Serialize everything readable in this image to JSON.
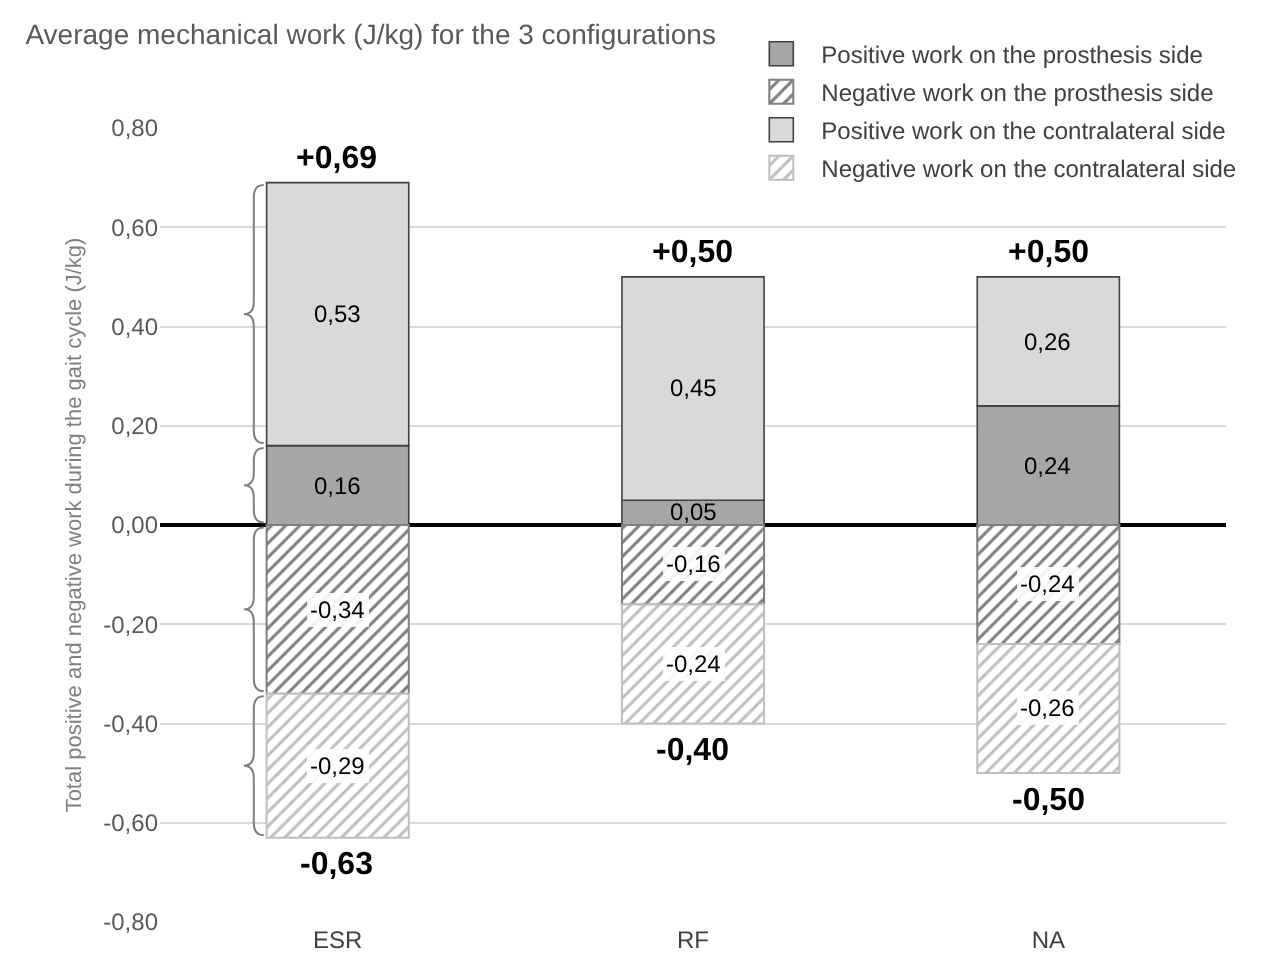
{
  "chart_data": {
    "type": "bar",
    "title": "Average mechanical work (J/kg) for the 3 configurations",
    "ylabel": "Total positive and negative work during the gait cycle (J/kg)",
    "categories": [
      "ESR",
      "RF",
      "NA"
    ],
    "stacked": true,
    "series": [
      {
        "name": "Positive work on the prosthesis side",
        "color": "#a6a6a6",
        "values": [
          0.16,
          0.05,
          0.24
        ],
        "value_labels": [
          "0,16",
          "0,05",
          "0,24"
        ]
      },
      {
        "name": "Negative work on the prosthesis side",
        "color": "#7f7f7f",
        "values": [
          -0.34,
          -0.16,
          -0.24
        ],
        "value_labels": [
          "-0,34",
          "-0,16",
          "-0,24"
        ]
      },
      {
        "name": "Positive work on the contralateral side",
        "color": "#d9d9d9",
        "values": [
          0.53,
          0.45,
          0.26
        ],
        "value_labels": [
          "0,53",
          "0,45",
          "0,26"
        ]
      },
      {
        "name": "Negative work on the contralateral side",
        "color": "#bfbfbf",
        "values": [
          -0.29,
          -0.24,
          -0.26
        ],
        "value_labels": [
          "-0,29",
          "-0,24",
          "-0,26"
        ]
      }
    ],
    "ylim": [
      -0.8,
      0.8
    ],
    "yticks": [
      {
        "value": -0.8,
        "label": "-0,80"
      },
      {
        "value": -0.6,
        "label": "-0,60"
      },
      {
        "value": -0.4,
        "label": "-0,40"
      },
      {
        "value": -0.2,
        "label": "-0,20"
      },
      {
        "value": 0,
        "label": "0,00"
      },
      {
        "value": 0.2,
        "label": "0,20"
      },
      {
        "value": 0.4,
        "label": "0,40"
      },
      {
        "value": 0.6,
        "label": "0,60"
      },
      {
        "value": 0.8,
        "label": "0,80"
      }
    ],
    "annotations": [
      {
        "text": "+0,69",
        "x": "ESR",
        "y": 0.69
      },
      {
        "text": "-0,63",
        "x": "ESR",
        "y": -0.63
      },
      {
        "text": "+0,50",
        "x": "RF",
        "y": 0.5
      },
      {
        "text": "-0,40",
        "x": "RF",
        "y": -0.4
      },
      {
        "text": "+0,50",
        "x": "NA",
        "y": 0.5
      },
      {
        "text": "-0,50",
        "x": "NA",
        "y": -0.5
      }
    ],
    "grid": "y",
    "legend": "top right"
  }
}
